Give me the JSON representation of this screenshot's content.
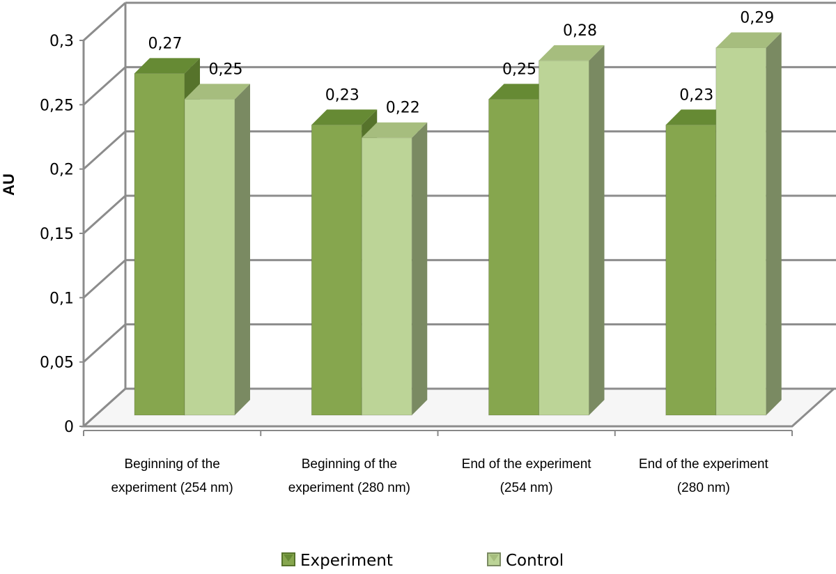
{
  "chart_data": {
    "type": "bar",
    "title": "",
    "xlabel": "",
    "ylabel": "AU",
    "ylim": [
      0,
      0.3
    ],
    "yticks": [
      "0",
      "0,05",
      "0,1",
      "0,15",
      "0,2",
      "0,25",
      "0,3"
    ],
    "categories": [
      [
        "Beginning of the",
        "experiment (254 nm)"
      ],
      [
        "Beginning of the",
        "experiment (280 nm)"
      ],
      [
        "End of the experiment",
        "(254 nm)"
      ],
      [
        "End of the experiment",
        "(280 nm)"
      ]
    ],
    "series": [
      {
        "name": "Experiment",
        "values": [
          0.27,
          0.23,
          0.25,
          0.23
        ],
        "labels": [
          "0,27",
          "0,23",
          "0,25",
          "0,23"
        ],
        "colors": {
          "front": "#86a64e",
          "top": "#668a34",
          "side": "#56732b"
        }
      },
      {
        "name": "Control",
        "values": [
          0.25,
          0.22,
          0.28,
          0.29
        ],
        "labels": [
          "0,25",
          "0,22",
          "0,28",
          "0,29"
        ],
        "colors": {
          "front": "#bcd497",
          "top": "#a6bd7e",
          "side": "#7a8a62"
        }
      }
    ],
    "legend": {
      "position": "bottom"
    },
    "grid": true
  }
}
